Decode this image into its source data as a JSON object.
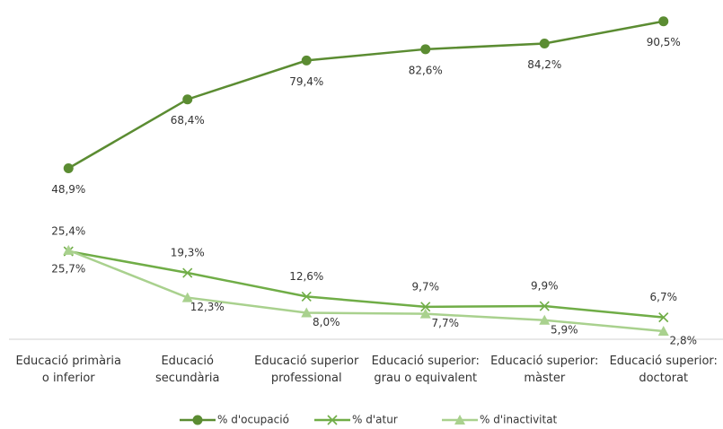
{
  "chart_data": {
    "type": "line",
    "categories": [
      "Educació primària\no inferior",
      "Educació\nsecundària",
      "Educació superior\nprofessional",
      "Educació superior:\ngrau o equivalent",
      "Educació superior:\nmàster",
      "Educació superior:\ndoctorat"
    ],
    "ylim": [
      0,
      95
    ],
    "legend": "bottom",
    "series": [
      {
        "name": "% d'ocupació",
        "color": "#5b8c32",
        "marker": "circle",
        "values": [
          48.9,
          68.4,
          79.4,
          82.6,
          84.2,
          90.5
        ],
        "value_labels": [
          "48,9%",
          "68,4%",
          "79,4%",
          "82,6%",
          "84,2%",
          "90,5%"
        ]
      },
      {
        "name": "% d'atur",
        "color": "#70ad47",
        "marker": "x",
        "values": [
          25.4,
          19.3,
          12.6,
          9.7,
          9.9,
          6.7
        ],
        "value_labels": [
          "25,4%",
          "19,3%",
          "12,6%",
          "9,7%",
          "9,9%",
          "6,7%"
        ]
      },
      {
        "name": "% d'inactivitat",
        "color": "#a9d18e",
        "marker": "triangle",
        "values": [
          25.7,
          12.3,
          8.0,
          7.7,
          5.9,
          2.8
        ],
        "value_labels": [
          "25,7%",
          "12,3%",
          "8,0%",
          "7,7%",
          "5,9%",
          "2,8%"
        ]
      }
    ]
  }
}
